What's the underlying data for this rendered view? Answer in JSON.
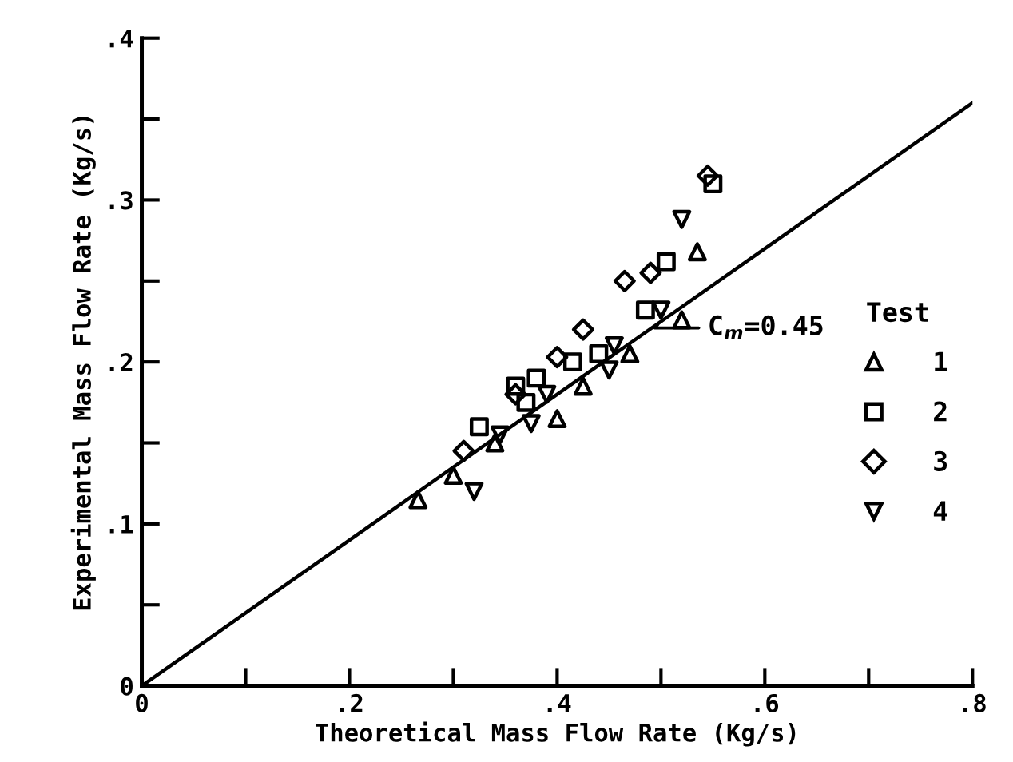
{
  "chart_data": {
    "type": "scatter",
    "xlabel": "Theoretical Mass Flow Rate (Kg/s)",
    "ylabel": "Experimental Mass Flow Rate (Kg/s)",
    "legend_title": "Test",
    "legend": "right",
    "xlim": [
      0,
      0.8
    ],
    "ylim": [
      0,
      0.4
    ],
    "xticks": [
      0,
      {
        "value": 0.1,
        "label": null
      },
      {
        "value": 0.2,
        "label": ".2"
      },
      {
        "value": 0.3,
        "label": null
      },
      {
        "value": 0.4,
        "label": ".4"
      },
      {
        "value": 0.5,
        "label": null
      },
      {
        "value": 0.6,
        "label": ".6"
      },
      {
        "value": 0.7,
        "label": null
      },
      {
        "value": 0.8,
        "label": ".8"
      }
    ],
    "yticks": [
      0,
      {
        "value": 0.05,
        "label": null
      },
      {
        "value": 0.1,
        "label": ".1"
      },
      {
        "value": 0.15,
        "label": null
      },
      {
        "value": 0.2,
        "label": ".2"
      },
      {
        "value": 0.25,
        "label": null
      },
      {
        "value": 0.3,
        "label": ".3"
      },
      {
        "value": 0.35,
        "label": null
      },
      {
        "value": 0.4,
        "label": ".4"
      }
    ],
    "grid": false,
    "annotations": [
      {
        "text": "C$_{m}$=0.45",
        "x": 0.5,
        "y": 0.225
      }
    ],
    "series": [
      {
        "type": "line",
        "color": "#000000",
        "x": [
          0,
          0.8
        ],
        "values": [
          0,
          0.36
        ],
        "marker": "none",
        "line_style": "solid"
      },
      {
        "name": "1",
        "color": "#000000",
        "marker": "triangle",
        "x": [
          0.266,
          0.3,
          0.34,
          0.4,
          0.425,
          0.47,
          0.52,
          0.535
        ],
        "values": [
          0.115,
          0.13,
          0.15,
          0.165,
          0.185,
          0.205,
          0.226,
          0.268
        ]
      },
      {
        "name": "2",
        "color": "#000000",
        "marker": "square",
        "x": [
          0.325,
          0.36,
          0.37,
          0.38,
          0.415,
          0.44,
          0.485,
          0.505,
          0.55
        ],
        "values": [
          0.16,
          0.185,
          0.175,
          0.19,
          0.2,
          0.205,
          0.232,
          0.262,
          0.31
        ]
      },
      {
        "name": "3",
        "color": "#000000",
        "marker": "diamond",
        "x": [
          0.31,
          0.36,
          0.4,
          0.425,
          0.465,
          0.49,
          0.545
        ],
        "values": [
          0.145,
          0.18,
          0.203,
          0.22,
          0.25,
          0.255,
          0.315
        ]
      },
      {
        "name": "4",
        "color": "#000000",
        "marker": "triangle_down",
        "x": [
          0.32,
          0.345,
          0.375,
          0.39,
          0.45,
          0.455,
          0.5,
          0.52
        ],
        "values": [
          0.12,
          0.155,
          0.162,
          0.18,
          0.195,
          0.21,
          0.232,
          0.288
        ]
      }
    ]
  }
}
